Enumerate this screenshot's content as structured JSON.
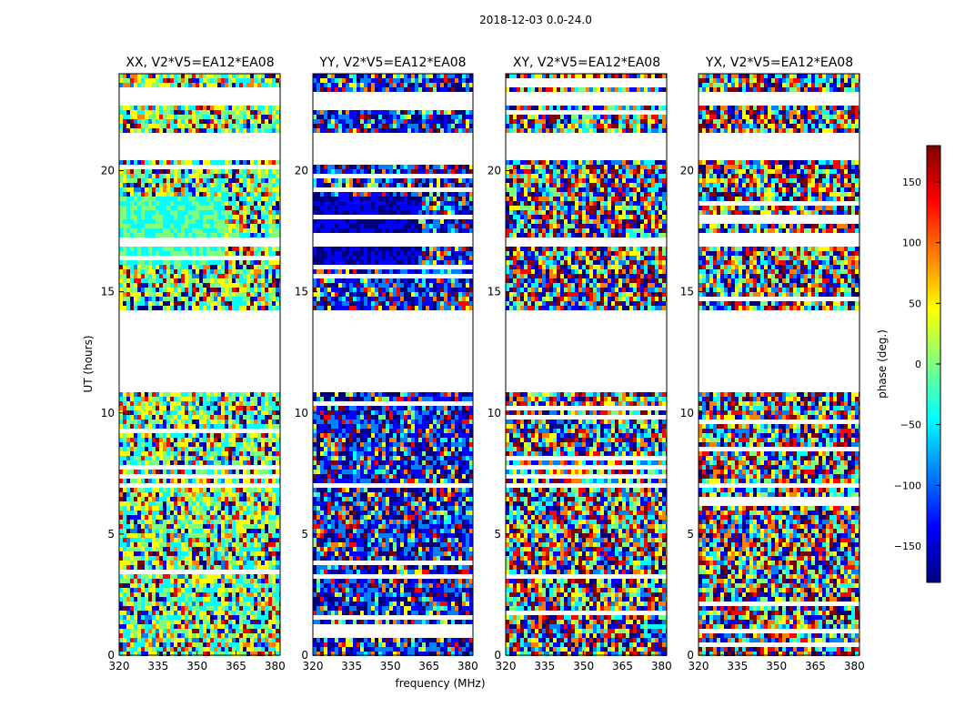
{
  "suptitle": "2018-12-03 0.0-24.0",
  "colormap": [
    "#00007f",
    "#0000ff",
    "#007fff",
    "#00ffff",
    "#7fff7f",
    "#ffff00",
    "#ff7f00",
    "#ff0000",
    "#7f0000"
  ],
  "chart_data": {
    "type": "heatmap",
    "xlabel": "frequency (MHz)",
    "ylabel": "UT (hours)",
    "xlim": [
      320,
      382
    ],
    "ylim": [
      0,
      24
    ],
    "xticks": [
      "320",
      "335",
      "350",
      "365",
      "380"
    ],
    "yticks": [
      "0",
      "5",
      "10",
      "15",
      "20"
    ],
    "colorbar": {
      "label": "phase (deg.)",
      "range": [
        -180,
        180
      ],
      "ticks": [
        "150",
        "100",
        "50",
        "0",
        "−50",
        "−100",
        "−150"
      ]
    },
    "panels": [
      {
        "title": "XX, V2*V5=EA12*EA08"
      },
      {
        "title": "YY, V2*V5=EA12*EA08"
      },
      {
        "title": "XY, V2*V5=EA12*EA08"
      },
      {
        "title": "YX, V2*V5=EA12*EA08"
      }
    ]
  }
}
